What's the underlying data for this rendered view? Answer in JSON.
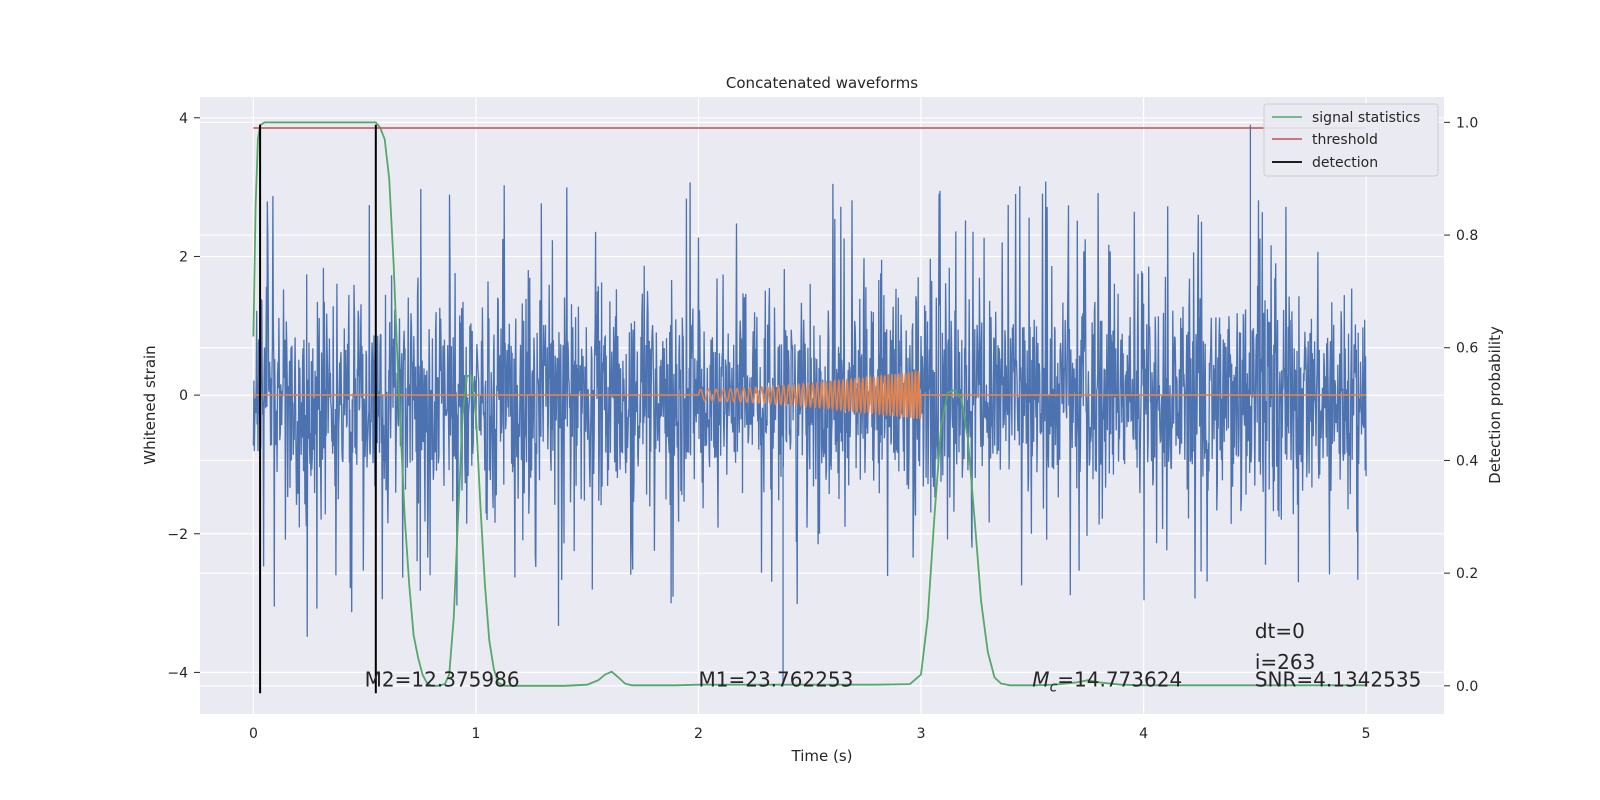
{
  "chart_data": {
    "type": "line",
    "title": "Concatenated waveforms",
    "xlabel": "Time (s)",
    "ylabel": "Whitened strain",
    "y2label": "Detection probability",
    "xlim": [
      -0.24,
      5.35
    ],
    "ylim": [
      -4.6,
      4.3
    ],
    "y2lim": [
      -0.05,
      1.045
    ],
    "xticks": [
      0,
      1,
      2,
      3,
      4,
      5
    ],
    "xtick_labels": [
      "0",
      "1",
      "2",
      "3",
      "4",
      "5"
    ],
    "yticks": [
      -4,
      -2,
      0,
      2,
      4
    ],
    "ytick_labels": [
      "−4",
      "−2",
      "0",
      "2",
      "4"
    ],
    "y2ticks": [
      0.0,
      0.2,
      0.4,
      0.6,
      0.8,
      1.0
    ],
    "y2tick_labels": [
      "0.0",
      "0.2",
      "0.4",
      "0.6",
      "0.8",
      "1.0"
    ],
    "grid": true,
    "legend_position": "top-right",
    "series": [
      {
        "name": "signal statistics",
        "axis": "right",
        "color": "#55a868",
        "x": [
          0,
          0.01,
          0.02,
          0.03,
          0.05,
          0.08,
          0.12,
          0.2,
          0.3,
          0.4,
          0.45,
          0.5,
          0.53,
          0.55,
          0.57,
          0.59,
          0.61,
          0.63,
          0.65,
          0.68,
          0.7,
          0.72,
          0.74,
          0.76,
          0.78,
          0.8,
          0.83,
          0.86,
          0.88,
          0.9,
          0.92,
          0.94,
          0.96,
          0.98,
          1.0,
          1.02,
          1.04,
          1.06,
          1.08,
          1.1,
          1.13,
          1.2,
          1.3,
          1.4,
          1.5,
          1.55,
          1.58,
          1.61,
          1.64,
          1.67,
          1.7,
          1.8,
          1.9,
          2.0,
          2.2,
          2.4,
          2.6,
          2.8,
          2.95,
          3.0,
          3.03,
          3.06,
          3.09,
          3.12,
          3.15,
          3.18,
          3.21,
          3.24,
          3.27,
          3.3,
          3.33,
          3.36,
          3.4,
          3.5,
          3.6,
          3.7,
          3.75,
          3.8,
          3.9,
          4.0,
          4.5,
          5.0
        ],
        "y": [
          0.62,
          0.85,
          0.97,
          0.995,
          1.0,
          1.0,
          1.0,
          1.0,
          1.0,
          1.0,
          1.0,
          1.0,
          1.0,
          1.0,
          0.99,
          0.97,
          0.9,
          0.75,
          0.55,
          0.3,
          0.18,
          0.09,
          0.05,
          0.02,
          0.005,
          0.0,
          0.0,
          0.003,
          0.02,
          0.12,
          0.3,
          0.48,
          0.55,
          0.55,
          0.48,
          0.32,
          0.18,
          0.08,
          0.03,
          0.005,
          0.0,
          0.0,
          0.0,
          0.0,
          0.002,
          0.01,
          0.02,
          0.025,
          0.015,
          0.004,
          0.001,
          0.001,
          0.001,
          0.002,
          0.002,
          0.002,
          0.002,
          0.002,
          0.003,
          0.02,
          0.12,
          0.3,
          0.46,
          0.52,
          0.525,
          0.51,
          0.44,
          0.3,
          0.15,
          0.06,
          0.015,
          0.004,
          0.001,
          0.001,
          0.002,
          0.006,
          0.01,
          0.006,
          0.002,
          0.001,
          0.001,
          0.001
        ]
      },
      {
        "name": "threshold",
        "axis": "right",
        "color": "#c44e52",
        "x": [
          0,
          5
        ],
        "y": [
          0.99,
          0.99
        ]
      },
      {
        "name": "detection",
        "axis": "left",
        "color": "#000000",
        "segments": [
          {
            "x": 0.03,
            "y0": -4.3,
            "y1": 3.9
          },
          {
            "x": 0.55,
            "y0": -4.3,
            "y1": 3.9
          }
        ]
      }
    ],
    "noise": {
      "axis": "left",
      "color": "#4c72b0",
      "x_range": [
        0,
        5
      ],
      "typical_range": [
        -1.3,
        1.3
      ],
      "spike_range": [
        -3.0,
        3.9
      ],
      "note_values": {
        "max_spike": 3.9,
        "min_spike": -4.2
      }
    },
    "injected_waveform": {
      "axis": "left",
      "color": "#dd8452",
      "x_start": 2.0,
      "x_end": 3.0,
      "amp_start": 0.08,
      "amp_end": 0.35,
      "cycles": 48
    },
    "annotations": [
      {
        "text": "M2=12.375986",
        "x": 0.5,
        "y": -4.1
      },
      {
        "text": "M1=23.762253",
        "x": 2.0,
        "y": -4.1
      },
      {
        "text_main": "M",
        "text_sub": "c",
        "text_rest": "=14.773624",
        "x": 3.5,
        "y": -4.1
      },
      {
        "text": "dt=0",
        "x": 4.5,
        "y": -3.4
      },
      {
        "text": "i=263",
        "x": 4.5,
        "y": -3.85
      },
      {
        "text": "SNR=4.1342535",
        "x": 4.5,
        "y": -4.1
      }
    ]
  },
  "colors": {
    "background": "#eaeaf2",
    "grid": "#ffffff",
    "noise": "#4c72b0",
    "waveform": "#dd8452",
    "signal": "#55a868",
    "threshold": "#c44e52",
    "detection": "#000000"
  }
}
